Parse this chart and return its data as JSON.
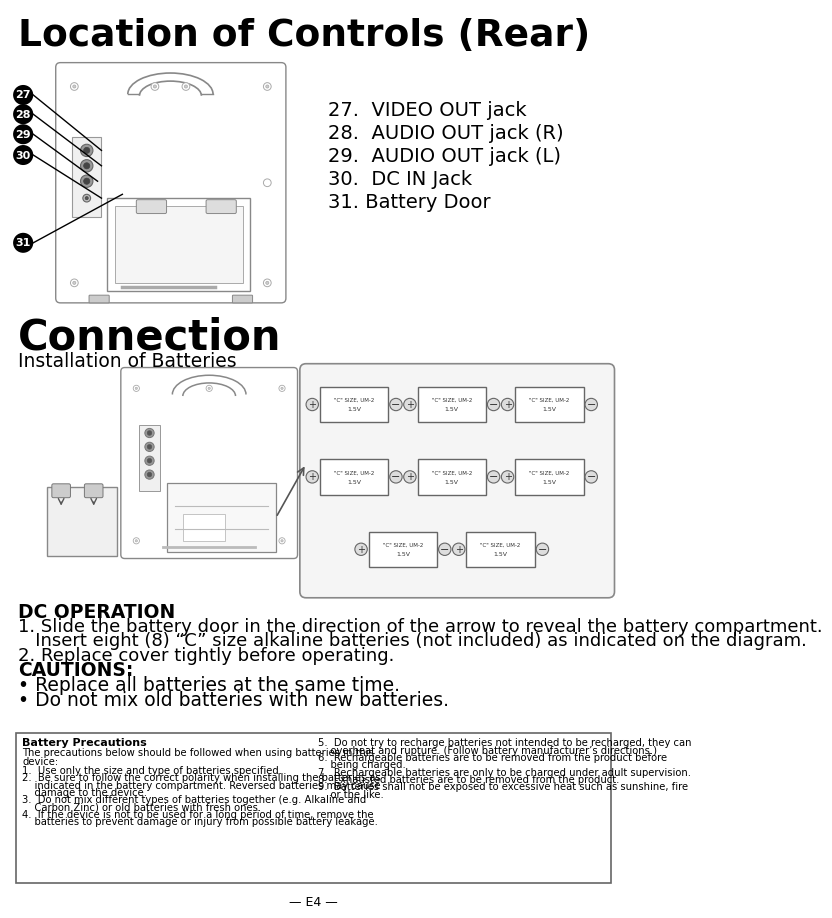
{
  "title": "Location of Controls (Rear)",
  "connection_title": "Connection",
  "install_subtitle": "Installation of Batteries",
  "dc_op_title": "DC OPERATION",
  "dc_op_line1": "1. Slide the battery door in the direction of the arrow to reveal the battery compartment.",
  "dc_op_line1b": "   Insert eight (8) “C” size alkaline batteries (not included) as indicated on the diagram.",
  "dc_op_line2": "2. Replace cover tightly before operating.",
  "cautions_title": "CAUTIONS:",
  "caution1": "• Replace all batteries at the same time.",
  "caution2": "• Do not mix old batteries with new batteries.",
  "controls": [
    "27.  VIDEO OUT jack",
    "28.  AUDIO OUT jack (R)",
    "29.  AUDIO OUT jack (L)",
    "30.  DC IN Jack",
    "31. Battery Door"
  ],
  "control_nums": [
    "27",
    "28",
    "29",
    "30",
    "31"
  ],
  "battery_title": "Battery Precautions",
  "battery_intro": "The precautions below should be followed when using batteries in this",
  "battery_intro2": "device:",
  "battery_left": [
    "1.  Use only the size and type of batteries specified.",
    "2.  Be sure to follow the correct polarity when installing the batteries as",
    "    indicated in the battery compartment. Reversed batteries may cause",
    "    damage to the device.",
    "3.  Do not mix different types of batteries together (e.g. Alkaline and",
    "    Carbon Zinc) or old batteries with fresh ones.",
    "4.  If the device is not to be used for a long period of time, remove the",
    "    batteries to prevent damage or injury from possible battery leakage."
  ],
  "battery_right": [
    "5.  Do not try to recharge batteries not intended to be recharged, they can",
    "    overheat and rupture. (Follow battery manufacturer’s directions.)",
    "6.  Rechargeable batteries are to be removed from the product before",
    "    being charged.",
    "7.  Rechargeable batteries are only to be charged under adult supervision.",
    "8.  Exhausted batteries are to be removed from the product.",
    "9.  Batteries shall not be exposed to excessive heat such as sunshine, fire",
    "    or the like."
  ],
  "footer": "— E4 —",
  "bg_color": "#ffffff",
  "text_color": "#000000",
  "gray1": "#aaaaaa",
  "gray2": "#666666",
  "gray3": "#dddddd",
  "gray4": "#888888"
}
